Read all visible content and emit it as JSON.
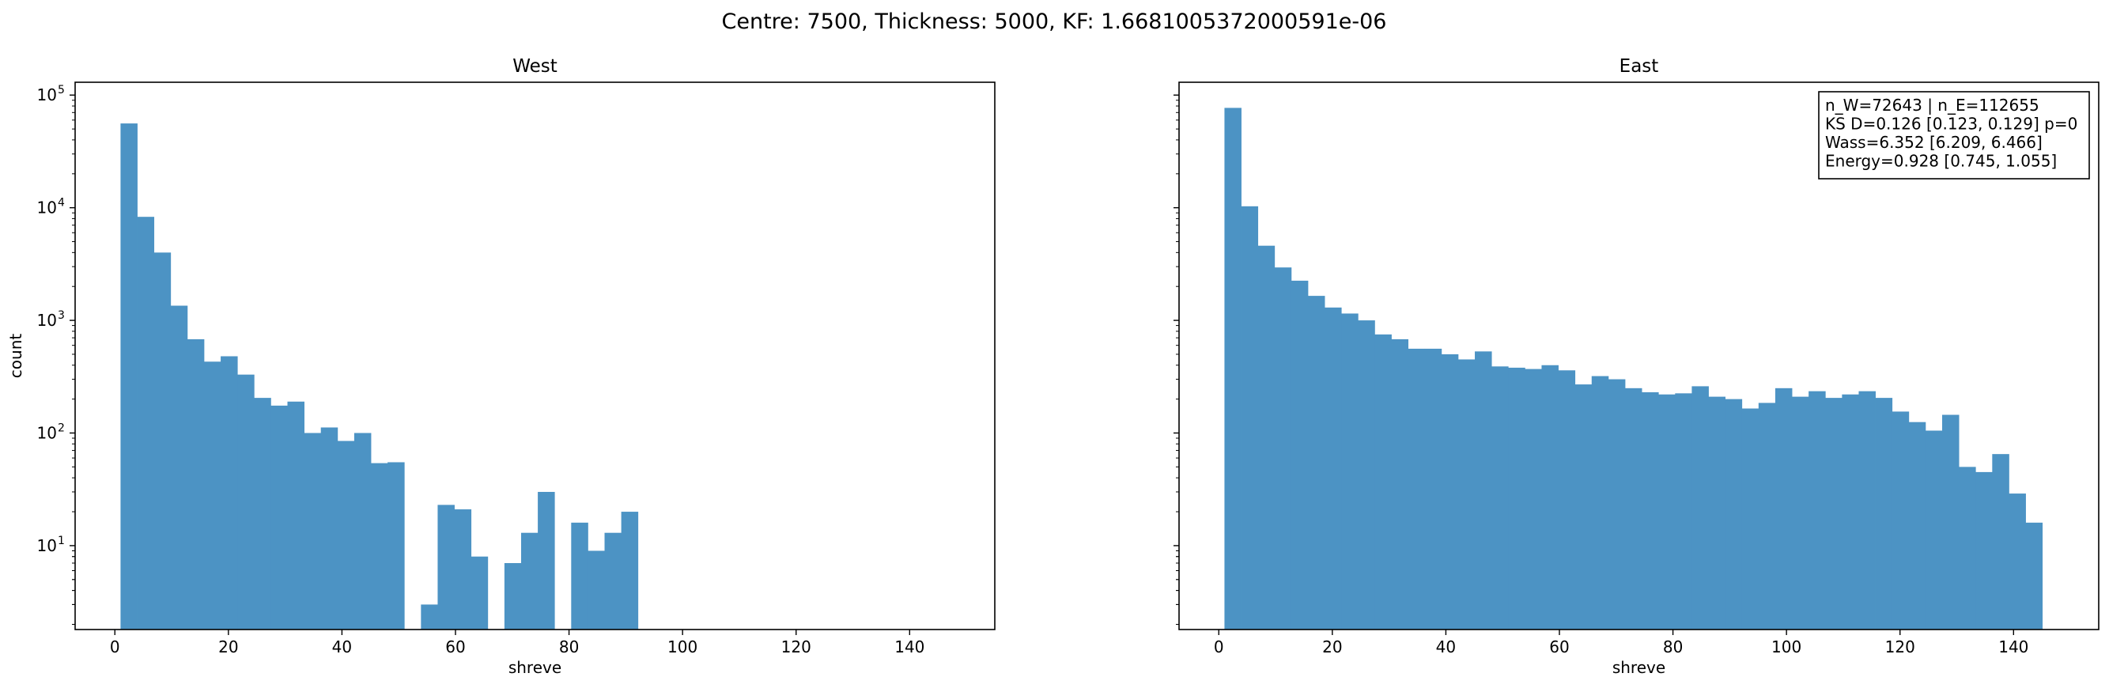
{
  "figure": {
    "suptitle": "Centre: 7500, Thickness: 5000, KF: 1.6681005372000591e-06"
  },
  "colors": {
    "bar": "#4c93c4",
    "axes": "#000000",
    "background": "#ffffff"
  },
  "chart_data": [
    {
      "type": "bar",
      "title": "West",
      "xlabel": "shreve",
      "ylabel": "count",
      "yscale": "log",
      "xlim": [
        -7,
        155
      ],
      "ylim": [
        1.8,
        130000
      ],
      "xticks": [
        0,
        20,
        40,
        60,
        80,
        100,
        120,
        140
      ],
      "yticks": [
        {
          "value": 10,
          "label": "10",
          "exp": "1"
        },
        {
          "value": 100,
          "label": "10",
          "exp": "2"
        },
        {
          "value": 1000,
          "label": "10",
          "exp": "3"
        },
        {
          "value": 10000,
          "label": "10",
          "exp": "4"
        },
        {
          "value": 100000,
          "label": "10",
          "exp": "5"
        }
      ],
      "grid": false,
      "bin_start": 1,
      "bin_width": 2.94,
      "values": [
        56000,
        8300,
        4000,
        1350,
        680,
        430,
        480,
        330,
        205,
        175,
        190,
        100,
        112,
        85,
        100,
        54,
        55,
        0,
        3,
        23,
        21,
        8,
        0,
        7,
        13,
        30,
        0,
        16,
        9,
        13,
        20
      ]
    },
    {
      "type": "bar",
      "title": "East",
      "xlabel": "shreve",
      "ylabel": "",
      "yscale": "log",
      "xlim": [
        -7,
        155
      ],
      "ylim": [
        1.8,
        130000
      ],
      "xticks": [
        0,
        20,
        40,
        60,
        80,
        100,
        120,
        140
      ],
      "grid": false,
      "bin_start": 1,
      "bin_width": 2.94,
      "values": [
        77000,
        10300,
        4600,
        2950,
        2250,
        1650,
        1300,
        1150,
        1000,
        750,
        680,
        560,
        560,
        500,
        450,
        530,
        390,
        380,
        370,
        400,
        360,
        270,
        320,
        300,
        250,
        230,
        220,
        225,
        260,
        210,
        200,
        165,
        185,
        250,
        210,
        235,
        205,
        220,
        235,
        205,
        155,
        125,
        105,
        145,
        50,
        45,
        65,
        29,
        16
      ],
      "annotation": [
        "n_W=72643 | n_E=112655",
        "KS D=0.126 [0.123, 0.129]  p=0",
        "Wass=6.352 [6.209, 6.466]",
        "Energy=0.928 [0.745, 1.055]"
      ],
      "annotation_position": "top-right"
    }
  ]
}
